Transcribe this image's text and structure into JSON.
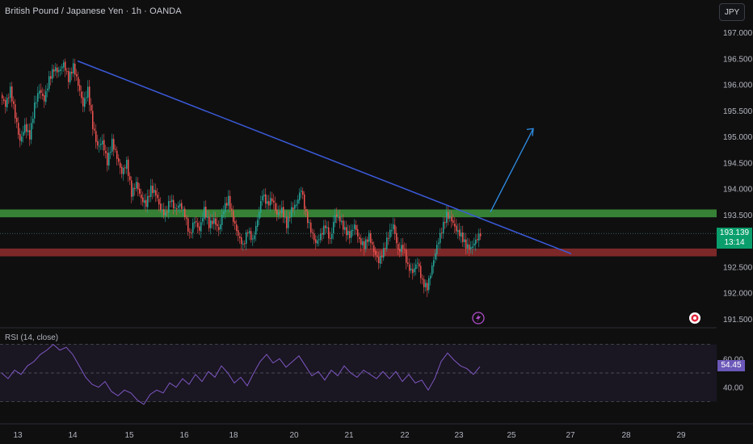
{
  "header": {
    "title": "British Pound / Japanese Yen · 1h · OANDA",
    "currency_button": "JPY"
  },
  "price_axis": {
    "labels": [
      "197.000",
      "196.500",
      "196.000",
      "195.500",
      "195.000",
      "194.500",
      "194.000",
      "193.500",
      "193.000",
      "192.500",
      "192.000",
      "191.500"
    ]
  },
  "time_axis": {
    "labels": [
      "13",
      "14",
      "15",
      "16",
      "18",
      "20",
      "21",
      "22",
      "23",
      "25",
      "27",
      "28",
      "29"
    ]
  },
  "current_price": {
    "value": "193.139",
    "countdown": "13:14"
  },
  "rsi": {
    "label": "RSI (14, close)",
    "value": "54.45",
    "levels": [
      "60.00",
      "40.00"
    ]
  },
  "colors": {
    "background": "#0f0f10",
    "up": "#26a69a",
    "down": "#ef5350",
    "trendline": "#3b5bdb",
    "arrow": "#2f8fe8",
    "support_zone": "#3b8e3a",
    "resistance_zone": "#8a2b2b",
    "rsi_line": "#7e57c2",
    "price_tag": "#0a9e6d"
  },
  "chart_data": {
    "type": "candlestick",
    "title": "British Pound / Japanese Yen · 1h · OANDA",
    "y_range": [
      191.3,
      197.3
    ],
    "x_ticks": [
      "13",
      "14",
      "15",
      "16",
      "18",
      "20",
      "21",
      "22",
      "23",
      "25",
      "27",
      "28",
      "29"
    ],
    "close_path": [
      [
        0,
        195.8
      ],
      [
        6,
        195.6
      ],
      [
        12,
        195.9
      ],
      [
        18,
        195.4
      ],
      [
        24,
        194.9
      ],
      [
        30,
        195.2
      ],
      [
        36,
        195.0
      ],
      [
        42,
        195.6
      ],
      [
        48,
        195.9
      ],
      [
        54,
        195.7
      ],
      [
        60,
        196.1
      ],
      [
        66,
        196.3
      ],
      [
        72,
        196.25
      ],
      [
        78,
        196.4
      ],
      [
        84,
        196.1
      ],
      [
        90,
        196.35
      ],
      [
        96,
        196.0
      ],
      [
        102,
        195.6
      ],
      [
        108,
        195.9
      ],
      [
        114,
        195.2
      ],
      [
        120,
        194.8
      ],
      [
        126,
        194.9
      ],
      [
        132,
        194.5
      ],
      [
        138,
        194.9
      ],
      [
        144,
        194.6
      ],
      [
        150,
        194.3
      ],
      [
        156,
        194.5
      ],
      [
        162,
        193.9
      ],
      [
        168,
        194.1
      ],
      [
        174,
        193.8
      ],
      [
        180,
        193.7
      ],
      [
        186,
        194.0
      ],
      [
        192,
        193.9
      ],
      [
        198,
        193.6
      ],
      [
        204,
        193.5
      ],
      [
        210,
        193.8
      ],
      [
        216,
        193.6
      ],
      [
        222,
        193.7
      ],
      [
        228,
        193.5
      ],
      [
        234,
        193.1
      ],
      [
        240,
        193.4
      ],
      [
        246,
        193.2
      ],
      [
        252,
        193.6
      ],
      [
        258,
        193.3
      ],
      [
        264,
        193.4
      ],
      [
        270,
        193.2
      ],
      [
        276,
        193.6
      ],
      [
        282,
        193.8
      ],
      [
        288,
        193.4
      ],
      [
        294,
        193.1
      ],
      [
        300,
        192.9
      ],
      [
        306,
        193.2
      ],
      [
        312,
        193.0
      ],
      [
        318,
        193.4
      ],
      [
        324,
        193.9
      ],
      [
        330,
        193.7
      ],
      [
        336,
        193.8
      ],
      [
        342,
        193.5
      ],
      [
        348,
        193.6
      ],
      [
        354,
        193.3
      ],
      [
        360,
        193.6
      ],
      [
        366,
        193.7
      ],
      [
        372,
        194.0
      ],
      [
        378,
        193.5
      ],
      [
        384,
        193.2
      ],
      [
        390,
        192.95
      ],
      [
        396,
        193.1
      ],
      [
        402,
        193.3
      ],
      [
        408,
        193.0
      ],
      [
        414,
        193.5
      ],
      [
        420,
        193.4
      ],
      [
        426,
        193.2
      ],
      [
        432,
        193.1
      ],
      [
        438,
        193.3
      ],
      [
        444,
        193.0
      ],
      [
        450,
        192.9
      ],
      [
        456,
        193.1
      ],
      [
        462,
        192.8
      ],
      [
        468,
        192.6
      ],
      [
        474,
        192.8
      ],
      [
        480,
        193.1
      ],
      [
        486,
        193.3
      ],
      [
        492,
        192.8
      ],
      [
        498,
        192.9
      ],
      [
        504,
        192.5
      ],
      [
        510,
        192.4
      ],
      [
        516,
        192.6
      ],
      [
        522,
        192.2
      ],
      [
        528,
        192.1
      ],
      [
        534,
        192.5
      ],
      [
        540,
        192.9
      ],
      [
        546,
        193.2
      ],
      [
        552,
        193.5
      ],
      [
        558,
        193.4
      ],
      [
        564,
        193.2
      ],
      [
        570,
        193.1
      ],
      [
        576,
        192.9
      ],
      [
        582,
        192.85
      ],
      [
        588,
        193.0
      ],
      [
        594,
        193.14
      ]
    ],
    "trendline": {
      "from": {
        "date": "14",
        "price": 196.45
      },
      "to": {
        "date": "27",
        "price": 192.75
      }
    },
    "support_zone": [
      193.45,
      193.6
    ],
    "resistance_zone": [
      192.7,
      192.85
    ],
    "projection_arrow": {
      "from": {
        "price": 193.55
      },
      "to": {
        "price": 195.15
      }
    },
    "rsi_series": [
      [
        0,
        50
      ],
      [
        8,
        46
      ],
      [
        16,
        52
      ],
      [
        24,
        49
      ],
      [
        32,
        55
      ],
      [
        40,
        58
      ],
      [
        48,
        63
      ],
      [
        56,
        66
      ],
      [
        64,
        70
      ],
      [
        72,
        66
      ],
      [
        80,
        68
      ],
      [
        88,
        63
      ],
      [
        96,
        55
      ],
      [
        104,
        47
      ],
      [
        112,
        42
      ],
      [
        120,
        40
      ],
      [
        128,
        44
      ],
      [
        136,
        37
      ],
      [
        144,
        34
      ],
      [
        152,
        38
      ],
      [
        160,
        36
      ],
      [
        168,
        31
      ],
      [
        176,
        28
      ],
      [
        184,
        35
      ],
      [
        192,
        38
      ],
      [
        200,
        36
      ],
      [
        208,
        43
      ],
      [
        216,
        40
      ],
      [
        224,
        46
      ],
      [
        232,
        42
      ],
      [
        240,
        49
      ],
      [
        248,
        44
      ],
      [
        256,
        51
      ],
      [
        264,
        47
      ],
      [
        272,
        55
      ],
      [
        280,
        50
      ],
      [
        288,
        43
      ],
      [
        296,
        47
      ],
      [
        304,
        41
      ],
      [
        312,
        50
      ],
      [
        320,
        58
      ],
      [
        328,
        63
      ],
      [
        336,
        57
      ],
      [
        344,
        60
      ],
      [
        352,
        54
      ],
      [
        360,
        58
      ],
      [
        368,
        62
      ],
      [
        376,
        55
      ],
      [
        384,
        48
      ],
      [
        392,
        51
      ],
      [
        400,
        45
      ],
      [
        408,
        52
      ],
      [
        416,
        48
      ],
      [
        424,
        55
      ],
      [
        432,
        50
      ],
      [
        440,
        47
      ],
      [
        448,
        52
      ],
      [
        456,
        49
      ],
      [
        464,
        46
      ],
      [
        472,
        51
      ],
      [
        480,
        46
      ],
      [
        488,
        51
      ],
      [
        496,
        44
      ],
      [
        504,
        49
      ],
      [
        512,
        43
      ],
      [
        520,
        45
      ],
      [
        528,
        38
      ],
      [
        536,
        46
      ],
      [
        544,
        58
      ],
      [
        552,
        64
      ],
      [
        560,
        59
      ],
      [
        568,
        55
      ],
      [
        576,
        53
      ],
      [
        584,
        49
      ],
      [
        592,
        54.45
      ]
    ],
    "rsi_range": [
      20,
      80
    ]
  }
}
